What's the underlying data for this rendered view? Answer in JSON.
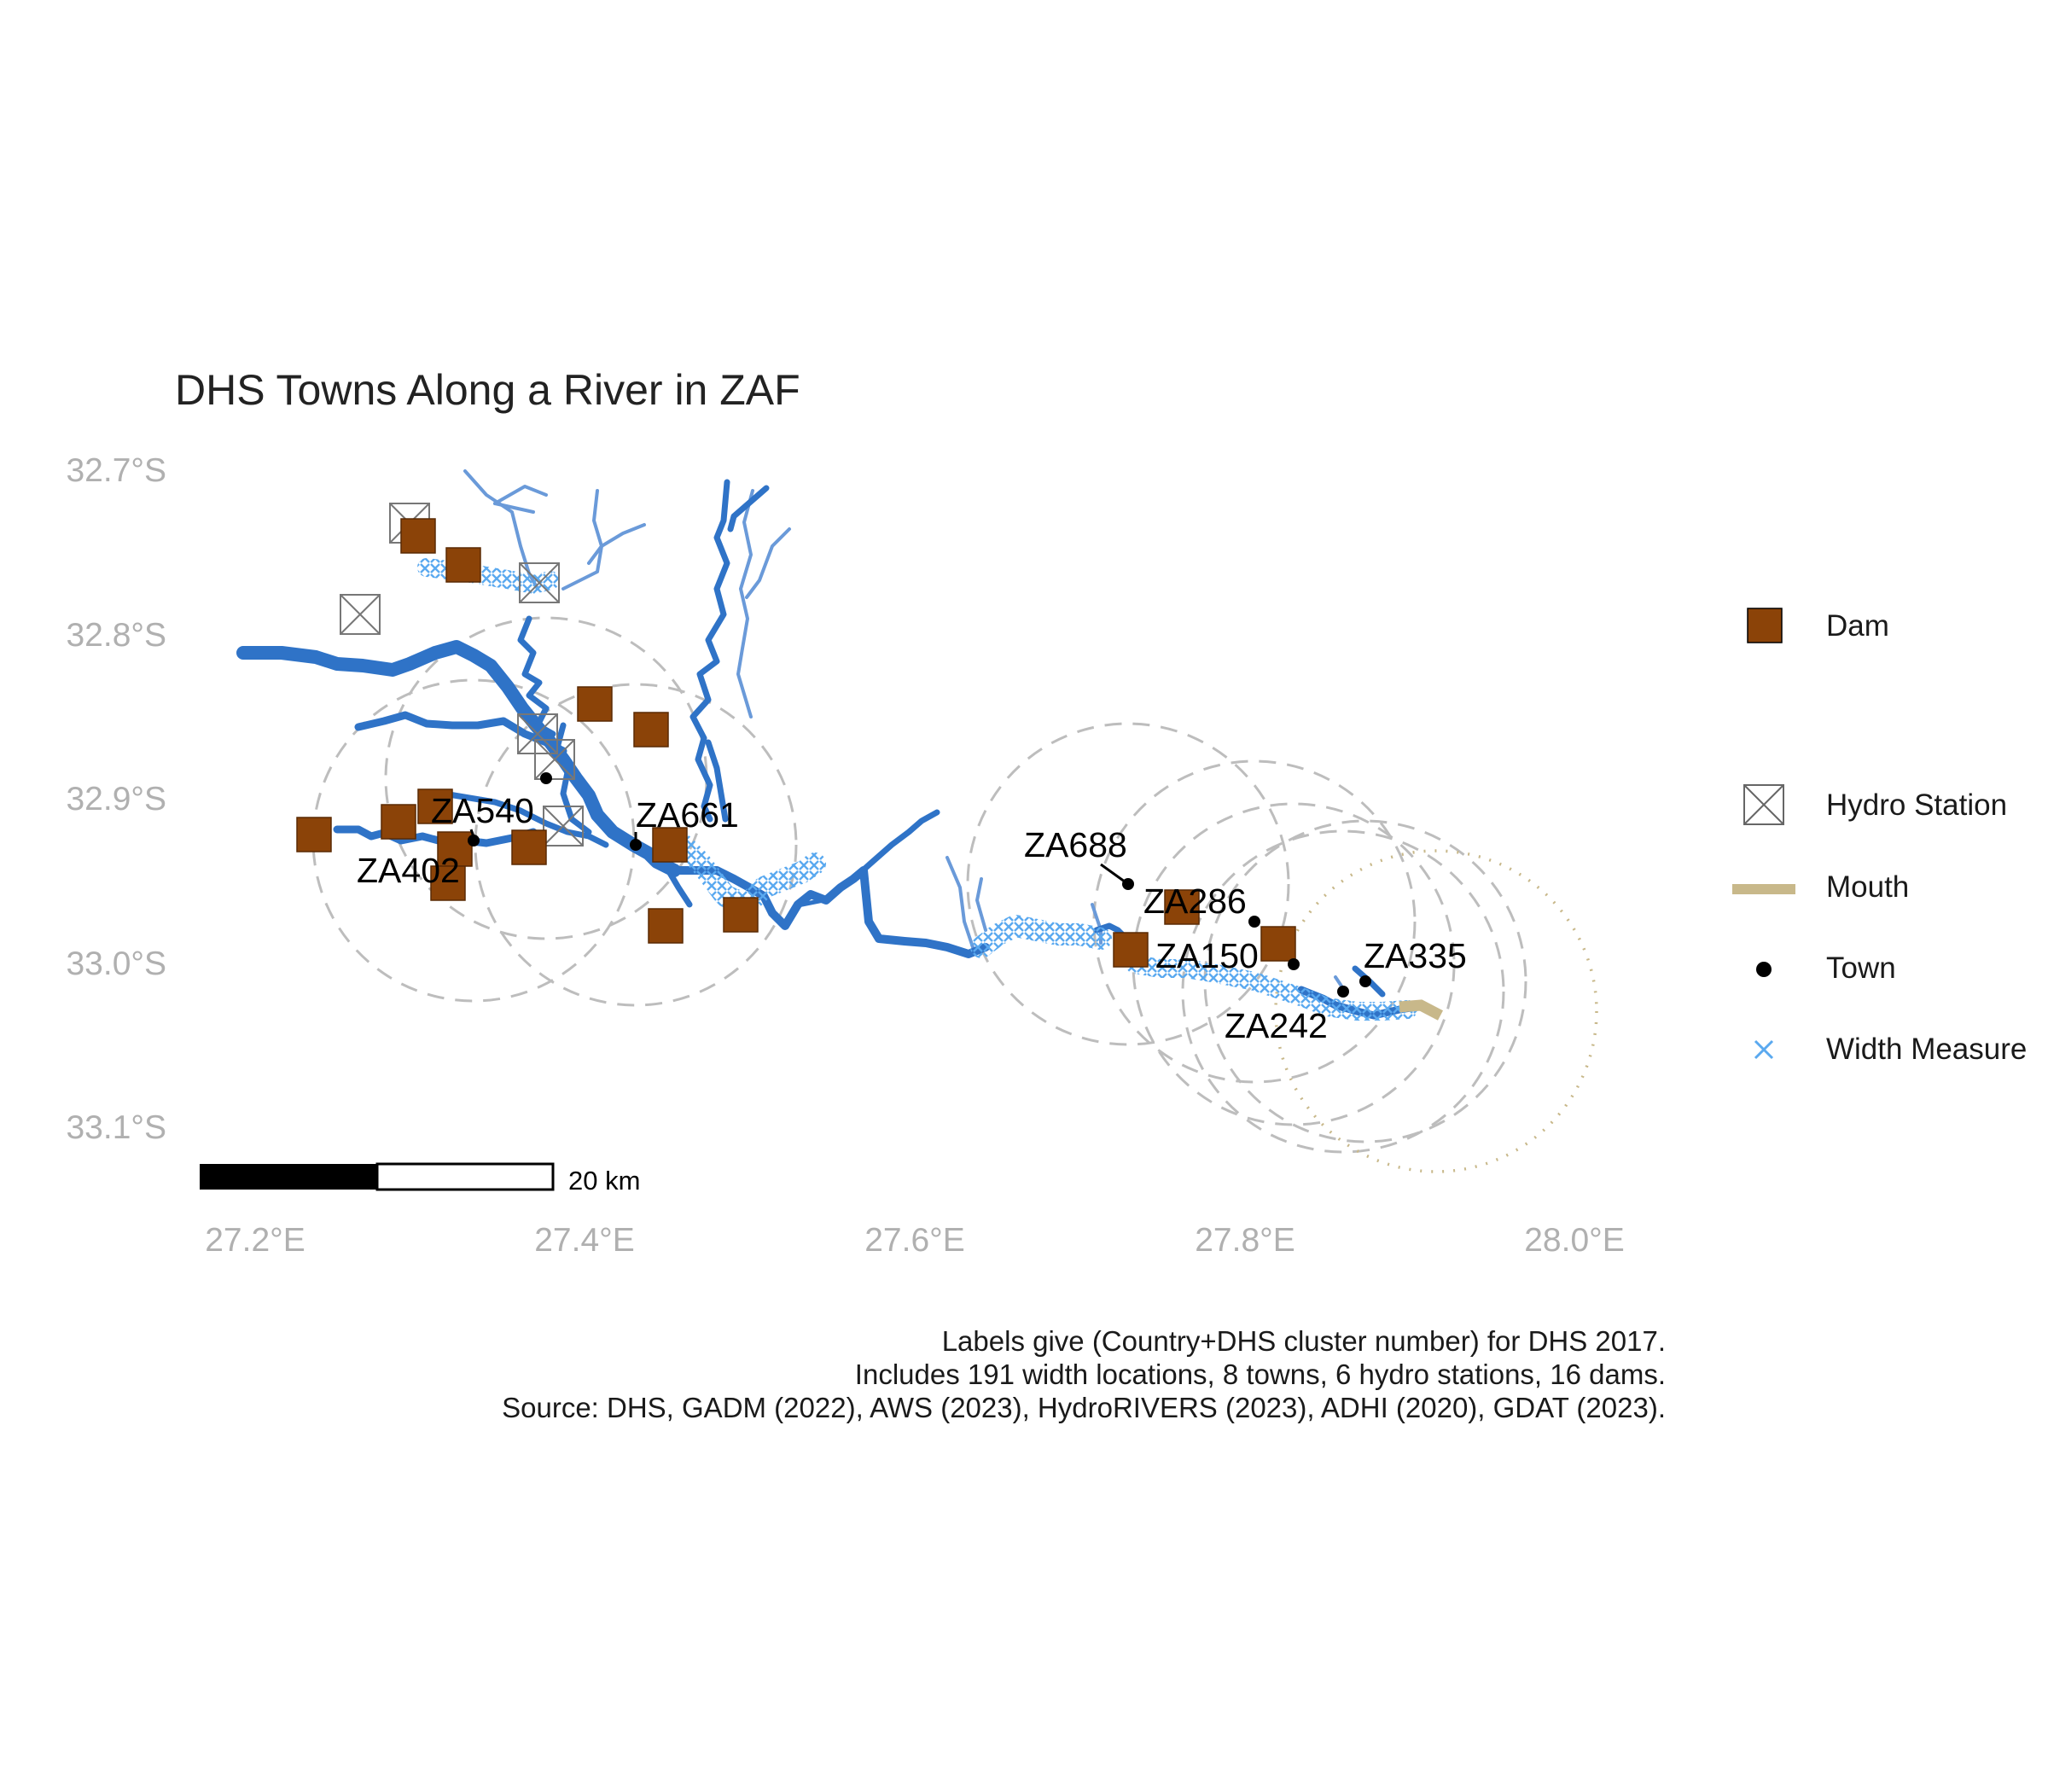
{
  "title": "DHS Towns Along a River in ZAF",
  "axes": {
    "y_ticks": [
      "32.7°S",
      "32.8°S",
      "32.9°S",
      "33.0°S",
      "33.1°S"
    ],
    "x_ticks": [
      "27.2°E",
      "27.4°E",
      "27.6°E",
      "27.8°E",
      "28.0°E"
    ]
  },
  "scale_bar": {
    "label": "20 km"
  },
  "towns": [
    {
      "label": "ZA540"
    },
    {
      "label": "ZA402"
    },
    {
      "label": "ZA661"
    },
    {
      "label": "ZA688"
    },
    {
      "label": "ZA286"
    },
    {
      "label": "ZA150"
    },
    {
      "label": "ZA242"
    },
    {
      "label": "ZA335"
    }
  ],
  "legend": {
    "dam": "Dam",
    "hydro_station": "Hydro Station",
    "mouth": "Mouth",
    "town": "Town",
    "width_measure": "Width Measure"
  },
  "caption": {
    "line1": "Labels give (Country+DHS cluster number) for DHS 2017.",
    "line2": "Includes 191 width locations, 8 towns, 6 hydro stations, 16 dams.",
    "line3": "Source: DHS, GADM (2022), AWS (2023), HydroRIVERS (2023), ADHI (2020), GDAT (2023)."
  },
  "colors": {
    "river_main": "#2f73c7",
    "river_trib": "#6a9ad9",
    "width_measure": "#5aa9ef",
    "dam_fill": "#8b4308",
    "mouth": "#c8b88a",
    "buffer_circle": "#bdbdbd",
    "axis_text": "#b0b0b0"
  }
}
